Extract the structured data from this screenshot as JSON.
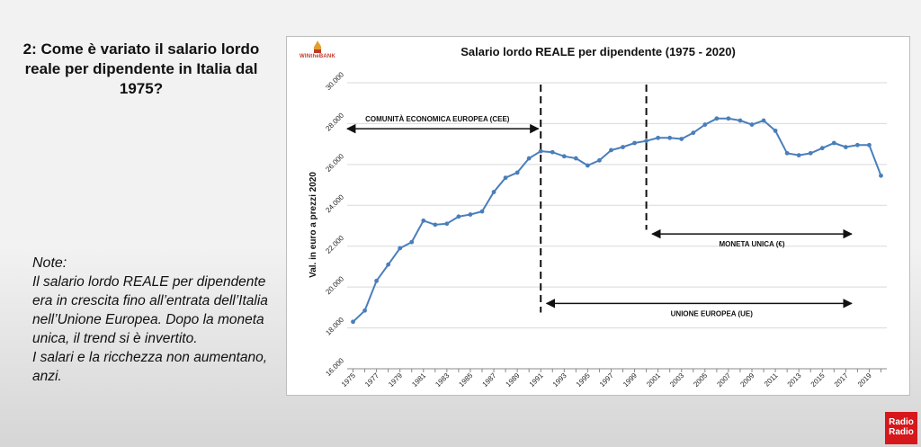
{
  "slide": {
    "title": "2: Come è variato il salario lordo reale per dipendente in Italia dal 1975?",
    "notes_heading": "Note:",
    "notes_body": "Il salario lordo REALE per dipendente era in crescita fino all’entrata dell’Italia nell’Unione Europea. Dopo la moneta unica, il trend si è invertito.",
    "notes_conclusion": "I salari e la ricchezza non aumentano, anzi."
  },
  "logo": {
    "text": "WINtheBANK"
  },
  "badge": {
    "line1": "Radio",
    "line2": "Radio"
  },
  "colors": {
    "series": "#4a7ebb",
    "grid": "#d9d9d9",
    "badge": "#d6171b"
  },
  "chart_data": {
    "type": "line",
    "title": "Salario lordo REALE per dipendente (1975 - 2020)",
    "xlabel": "",
    "ylabel": "Val. in euro a prezzi 2020",
    "ylim": [
      16000,
      30000
    ],
    "yticks": [
      16000,
      18000,
      20000,
      22000,
      24000,
      26000,
      28000,
      30000
    ],
    "ytick_labels": [
      "16.000",
      "18.000",
      "20.000",
      "22.000",
      "24.000",
      "26.000",
      "28.000",
      "30.000"
    ],
    "x": [
      1975,
      1976,
      1977,
      1978,
      1979,
      1980,
      1981,
      1982,
      1983,
      1984,
      1985,
      1986,
      1987,
      1988,
      1989,
      1990,
      1991,
      1992,
      1993,
      1994,
      1995,
      1996,
      1997,
      1998,
      1999,
      2000,
      2001,
      2002,
      2003,
      2004,
      2005,
      2006,
      2007,
      2008,
      2009,
      2010,
      2011,
      2012,
      2013,
      2014,
      2015,
      2016,
      2017,
      2018,
      2019,
      2020
    ],
    "xtick_labels": [
      "1975",
      "1977",
      "1979",
      "1981",
      "1983",
      "1985",
      "1987",
      "1989",
      "1991",
      "1993",
      "1995",
      "1997",
      "1999",
      "2001",
      "2003",
      "2005",
      "2007",
      "2009",
      "2011",
      "2013",
      "2015",
      "2017",
      "2019"
    ],
    "series": [
      {
        "name": "Salario lordo reale per dipendente",
        "values": [
          18300,
          18850,
          20300,
          21100,
          21900,
          22200,
          23250,
          23050,
          23100,
          23450,
          23550,
          23700,
          24650,
          25350,
          25600,
          26300,
          26650,
          26600,
          26400,
          26300,
          25950,
          26200,
          26700,
          26850,
          27050,
          27150,
          27300,
          27300,
          27250,
          27550,
          27950,
          28250,
          28250,
          28150,
          27950,
          28150,
          27650,
          26550,
          26450,
          26550,
          26800,
          27050,
          26850,
          26950,
          26950,
          25450
        ]
      }
    ],
    "grid": true,
    "legend": "none",
    "annotations": {
      "cee_label": "COMUNITÀ ECONOMICA EUROPEA (CEE)",
      "ue_label": "UNIONE EUROPEA (UE)",
      "moneta_label": "MONETA UNICA (€)",
      "divider_years": [
        1991,
        2000
      ],
      "cee_arrow": {
        "from_year": 1974.5,
        "to_year": 1990.8,
        "level": 27750
      },
      "ue_arrow": {
        "from_year": 1991.5,
        "to_year": 2017.5,
        "level": 19200
      },
      "moneta_arrow": {
        "from_year": 2000.5,
        "to_year": 2017.5,
        "level": 22600
      }
    }
  }
}
